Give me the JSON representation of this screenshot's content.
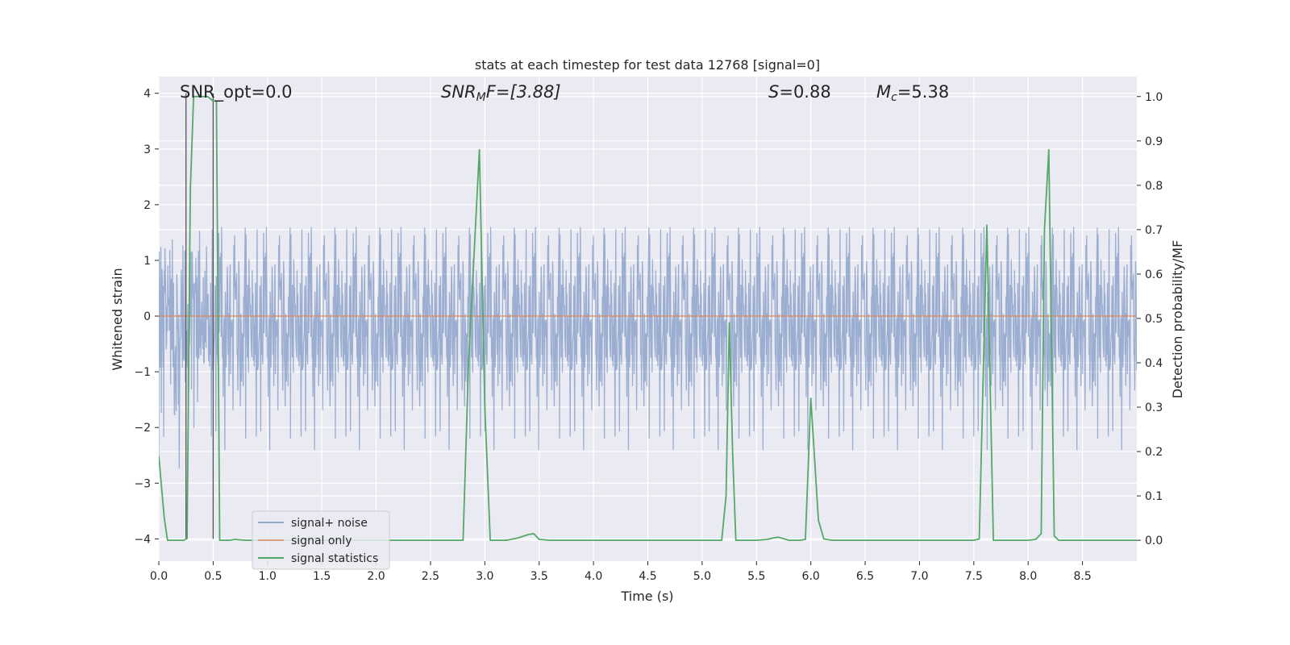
{
  "chart_data": {
    "type": "line",
    "title": "stats at each timestep for test data 12768 [signal=0]",
    "xlabel": "Time (s)",
    "ylabel_left": "Whitened strain",
    "ylabel_right": "Detection probability/MF",
    "xlim": [
      0.0,
      9.0
    ],
    "ylim_left": [
      -4.4,
      4.3
    ],
    "ylim_right": [
      -0.047,
      1.045
    ],
    "x_ticks": [
      "0.0",
      "0.5",
      "1.0",
      "1.5",
      "2.0",
      "2.5",
      "3.0",
      "3.5",
      "4.0",
      "4.5",
      "5.0",
      "5.5",
      "6.0",
      "6.5",
      "7.0",
      "7.5",
      "8.0",
      "8.5"
    ],
    "x_tick_values": [
      0.0,
      0.5,
      1.0,
      1.5,
      2.0,
      2.5,
      3.0,
      3.5,
      4.0,
      4.5,
      5.0,
      5.5,
      6.0,
      6.5,
      7.0,
      7.5,
      8.0,
      8.5
    ],
    "y_left_ticks": [
      "−4",
      "−3",
      "−2",
      "−1",
      "0",
      "1",
      "2",
      "3",
      "4"
    ],
    "y_left_tick_values": [
      -4,
      -3,
      -2,
      -1,
      0,
      1,
      2,
      3,
      4
    ],
    "y_right_ticks": [
      "0.0",
      "0.1",
      "0.2",
      "0.3",
      "0.4",
      "0.5",
      "0.6",
      "0.7",
      "0.8",
      "0.9",
      "1.0"
    ],
    "y_right_tick_values": [
      0.0,
      0.1,
      0.2,
      0.3,
      0.4,
      0.5,
      0.6,
      0.7,
      0.8,
      0.9,
      1.0
    ],
    "grid": true,
    "legend_position": "lower-left",
    "annotations": {
      "snr_opt": "SNR_opt=0.0",
      "snr_mf_base": "SNR",
      "snr_mf_sub": "M",
      "snr_mf_tail": "F=[3.88]",
      "s_base": "S",
      "s_tail": "=0.88",
      "mc_base": "M",
      "mc_sub": "c",
      "mc_tail": "=5.38"
    },
    "markers": {
      "x": [
        0.25,
        0.5
      ],
      "y_range": [
        -4.0,
        4.0
      ]
    },
    "series": [
      {
        "name": "signal+ noise",
        "color": "#4c72b0",
        "style": "noise",
        "amplitude_typical": [
          -1.6,
          1.6
        ],
        "amplitude_extremes": [
          -3.7,
          3.9
        ]
      },
      {
        "name": "signal only",
        "color": "#dd8452",
        "x": [
          0.0,
          9.0
        ],
        "y": [
          0.0,
          0.0
        ]
      },
      {
        "name": "signal statistics",
        "color": "#55a868",
        "axis": "right",
        "x": [
          0.0,
          0.05,
          0.08,
          0.15,
          0.23,
          0.26,
          0.29,
          0.32,
          0.45,
          0.5,
          0.53,
          0.56,
          0.65,
          0.7,
          0.8,
          1.0,
          2.0,
          2.8,
          2.85,
          2.95,
          3.0,
          3.05,
          3.2,
          3.3,
          3.4,
          3.45,
          3.5,
          3.6,
          4.0,
          5.0,
          5.18,
          5.22,
          5.25,
          5.28,
          5.31,
          5.4,
          5.5,
          5.6,
          5.65,
          5.7,
          5.8,
          5.9,
          5.95,
          6.0,
          6.07,
          6.12,
          6.2,
          6.3,
          6.5,
          7.0,
          7.5,
          7.55,
          7.62,
          7.68,
          7.72,
          7.8,
          8.0,
          8.07,
          8.12,
          8.15,
          8.19,
          8.24,
          8.28,
          8.4,
          9.0
        ],
        "y": [
          0.19,
          0.05,
          0.0,
          0.0,
          0.0,
          0.004,
          0.79,
          1.0,
          1.0,
          0.99,
          0.99,
          0.0,
          0.0,
          0.002,
          0.0,
          0.0,
          0.0,
          0.0,
          0.4,
          0.88,
          0.3,
          0.0,
          0.0,
          0.005,
          0.013,
          0.015,
          0.002,
          0.0,
          0.0,
          0.0,
          0.0,
          0.1,
          0.49,
          0.2,
          0.0,
          0.0,
          0.0,
          0.002,
          0.005,
          0.007,
          0.0,
          0.0,
          0.002,
          0.32,
          0.045,
          0.003,
          0.0,
          0.0,
          0.0,
          0.0,
          0.0,
          0.003,
          0.71,
          0.0,
          0.0,
          0.0,
          0.0,
          0.002,
          0.015,
          0.7,
          0.88,
          0.01,
          0.0,
          0.0,
          0.0
        ]
      }
    ]
  }
}
